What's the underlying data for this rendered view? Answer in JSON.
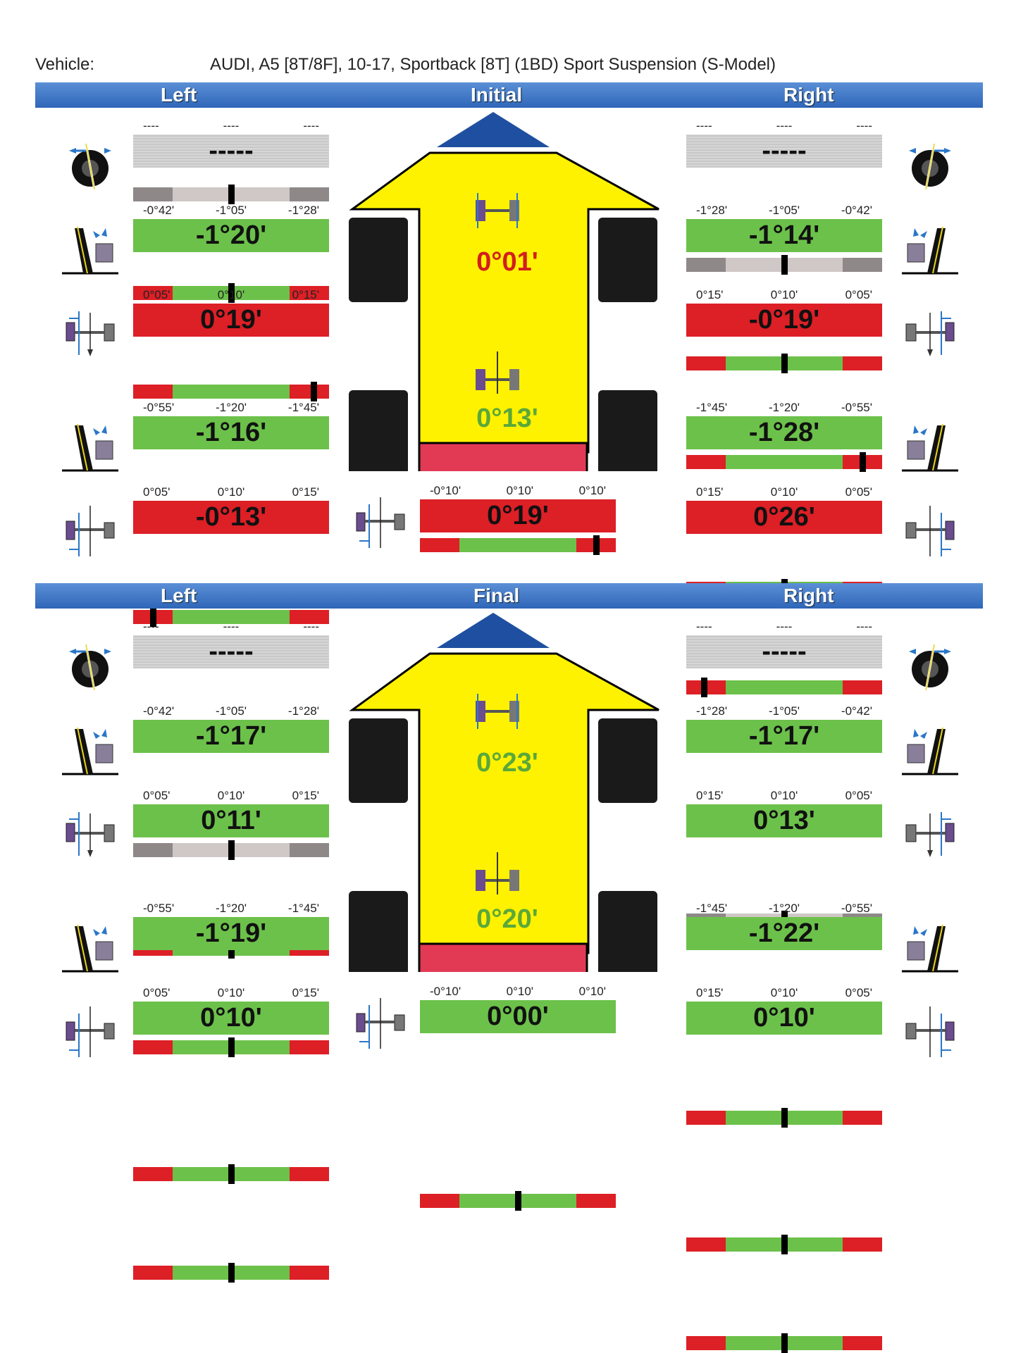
{
  "vehicle": {
    "label": "Vehicle:",
    "name": "AUDI, A5 [8T/8F], 10-17, Sportback [8T] (1BD) Sport Suspension (S-Model)"
  },
  "colors": {
    "green": "#6cc14a",
    "red": "#dd1f26",
    "gray": "#d0d0d0",
    "header": "#2f66b8",
    "arrow": "#fff200",
    "arrow_tip": "#1f4fa0",
    "rear_bar": "#e23a55",
    "good_text": "#5aa83a",
    "bad_text": "#d21e1e"
  },
  "sections": [
    {
      "title": "Initial",
      "left_label": "Left",
      "right_label": "Right",
      "center_front_value": "0°01'",
      "center_front_status": "red",
      "center_rear_value": "0°13'",
      "center_rear_status": "green",
      "thrust": {
        "ranges": [
          "-0°10'",
          "0°10'",
          "0°10'"
        ],
        "value": "0°19'",
        "status": "red",
        "marker_pos": 0.9
      },
      "left": [
        {
          "icon": "caster-icon",
          "ranges": [
            "----",
            "----",
            "----"
          ],
          "value": "-----",
          "status": "gray",
          "marker_pos": 0.5
        },
        {
          "icon": "camber-icon",
          "ranges": [
            "-0°42'",
            "-1°05'",
            "-1°28'"
          ],
          "value": "-1°20'",
          "status": "green",
          "marker_pos": 0.5
        },
        {
          "icon": "toe-front-icon",
          "ranges": [
            "0°05'",
            "0°10'",
            "0°15'"
          ],
          "value": "0°19'",
          "status": "red",
          "marker_pos": 0.92
        },
        {
          "icon": "camber-icon",
          "ranges": [
            "-0°55'",
            "-1°20'",
            "-1°45'"
          ],
          "value": "-1°16'",
          "status": "green",
          "marker_pos": 0.5
        },
        {
          "icon": "toe-rear-icon",
          "ranges": [
            "0°05'",
            "0°10'",
            "0°15'"
          ],
          "value": "-0°13'",
          "status": "red",
          "marker_pos": 0.1
        }
      ],
      "right": [
        {
          "icon": "caster-icon",
          "ranges": [
            "----",
            "----",
            "----"
          ],
          "value": "-----",
          "status": "gray",
          "marker_pos": 0.5
        },
        {
          "icon": "camber-icon",
          "ranges": [
            "-1°28'",
            "-1°05'",
            "-0°42'"
          ],
          "value": "-1°14'",
          "status": "green",
          "marker_pos": 0.5
        },
        {
          "icon": "toe-front-icon",
          "ranges": [
            "0°15'",
            "0°10'",
            "0°05'"
          ],
          "value": "-0°19'",
          "status": "red",
          "marker_pos": 0.9
        },
        {
          "icon": "camber-icon",
          "ranges": [
            "-1°45'",
            "-1°20'",
            "-0°55'"
          ],
          "value": "-1°28'",
          "status": "green",
          "marker_pos": 0.5
        },
        {
          "icon": "toe-rear-icon",
          "ranges": [
            "0°15'",
            "0°10'",
            "0°05'"
          ],
          "value": "0°26'",
          "status": "red",
          "marker_pos": 0.09
        }
      ]
    },
    {
      "title": "Final",
      "left_label": "Left",
      "right_label": "Right",
      "center_front_value": "0°23'",
      "center_front_status": "green",
      "center_rear_value": "0°20'",
      "center_rear_status": "green",
      "thrust": {
        "ranges": [
          "-0°10'",
          "0°10'",
          "0°10'"
        ],
        "value": "0°00'",
        "status": "green",
        "marker_pos": 0.5
      },
      "left": [
        {
          "icon": "caster-icon",
          "ranges": [
            "----",
            "----",
            "----"
          ],
          "value": "-----",
          "status": "gray",
          "marker_pos": 0.5
        },
        {
          "icon": "camber-icon",
          "ranges": [
            "-0°42'",
            "-1°05'",
            "-1°28'"
          ],
          "value": "-1°17'",
          "status": "green",
          "marker_pos": 0.5
        },
        {
          "icon": "toe-front-icon",
          "ranges": [
            "0°05'",
            "0°10'",
            "0°15'"
          ],
          "value": "0°11'",
          "status": "green",
          "marker_pos": 0.5
        },
        {
          "icon": "camber-icon",
          "ranges": [
            "-0°55'",
            "-1°20'",
            "-1°45'"
          ],
          "value": "-1°19'",
          "status": "green",
          "marker_pos": 0.5
        },
        {
          "icon": "toe-rear-icon",
          "ranges": [
            "0°05'",
            "0°10'",
            "0°15'"
          ],
          "value": "0°10'",
          "status": "green",
          "marker_pos": 0.5
        }
      ],
      "right": [
        {
          "icon": "caster-icon",
          "ranges": [
            "----",
            "----",
            "----"
          ],
          "value": "-----",
          "status": "gray",
          "marker_pos": 0.5
        },
        {
          "icon": "camber-icon",
          "ranges": [
            "-1°28'",
            "-1°05'",
            "-0°42'"
          ],
          "value": "-1°17'",
          "status": "green",
          "marker_pos": 0.5
        },
        {
          "icon": "toe-front-icon",
          "ranges": [
            "0°15'",
            "0°10'",
            "0°05'"
          ],
          "value": "0°13'",
          "status": "green",
          "marker_pos": 0.5
        },
        {
          "icon": "camber-icon",
          "ranges": [
            "-1°45'",
            "-1°20'",
            "-0°55'"
          ],
          "value": "-1°22'",
          "status": "green",
          "marker_pos": 0.5
        },
        {
          "icon": "toe-rear-icon",
          "ranges": [
            "0°15'",
            "0°10'",
            "0°05'"
          ],
          "value": "0°10'",
          "status": "green",
          "marker_pos": 0.5
        }
      ]
    }
  ]
}
